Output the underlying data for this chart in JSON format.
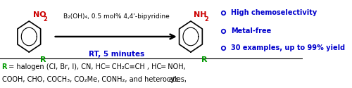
{
  "bg_color": "#ffffff",
  "black": "#000000",
  "blue": "#0000cc",
  "red": "#cc0000",
  "green": "#009900",
  "reagent_line1": "B₂(OH)₄, 0.5 mol% 4,4'-bipyridine",
  "reagent_line2": "RT, 5 minutes",
  "bullet_items": [
    "High chemoselectivity",
    "Metal-free",
    "30 examples, up to 99% yield"
  ],
  "r_text_line1": " = halogen (Cl, Br, I), CN, HC═ CH₂C≡CH , HC═ NOH,",
  "r_text_line2": "COOH, CHO, COCH₃, CO₂Me, CONH₂, and heterocyles, ",
  "r_text_etc": "etc."
}
